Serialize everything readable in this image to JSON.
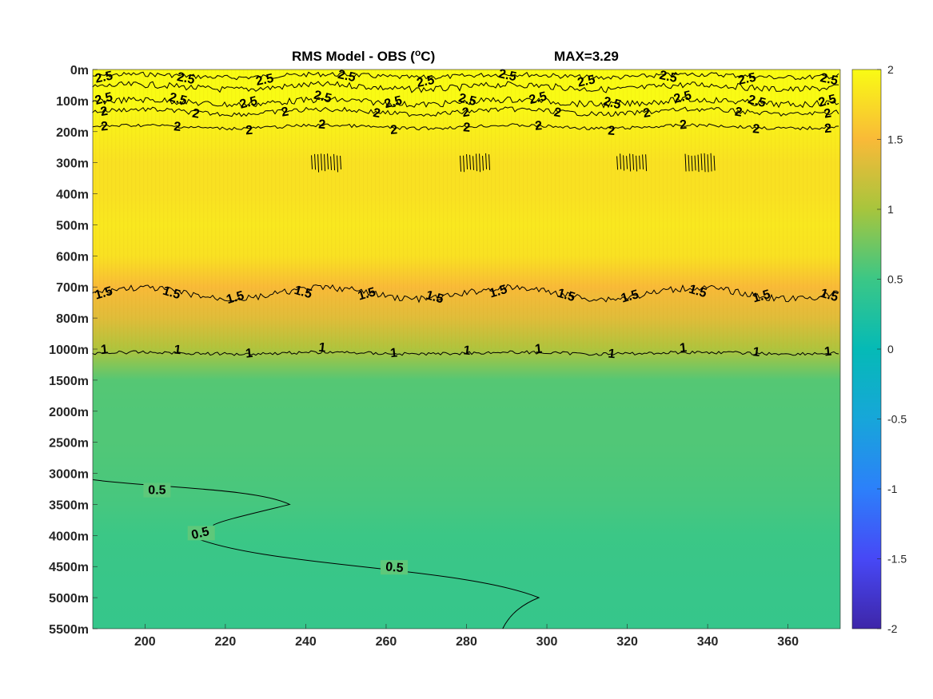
{
  "chart_data": {
    "type": "heatmap",
    "title": "RMS Model - OBS (°C)",
    "title_prefix": "RMS Model - OBS (",
    "title_degree": "o",
    "title_suffix": "C)",
    "max_label": "MAX=3.29",
    "x_ticks": [
      200,
      220,
      240,
      260,
      280,
      300,
      320,
      340,
      360
    ],
    "x_range": [
      187,
      373
    ],
    "y_tick_labels": [
      "0m",
      "100m",
      "200m",
      "300m",
      "400m",
      "500m",
      "600m",
      "700m",
      "800m",
      "1000m",
      "1500m",
      "2000m",
      "2500m",
      "3000m",
      "3500m",
      "4000m",
      "4500m",
      "5000m",
      "5500m"
    ],
    "colorbar": {
      "range": [
        -2,
        2
      ],
      "ticks": [
        2,
        1.5,
        1,
        0.5,
        0,
        -0.5,
        -1,
        -1.5,
        -2
      ],
      "colormap": "parula"
    },
    "depth_profile_rms": [
      {
        "level": "0m",
        "value": 2.6
      },
      {
        "level": "100m",
        "value": 2.4
      },
      {
        "level": "200m",
        "value": 1.9
      },
      {
        "level": "300m",
        "value": 1.8
      },
      {
        "level": "400m",
        "value": 1.8
      },
      {
        "level": "500m",
        "value": 1.85
      },
      {
        "level": "600m",
        "value": 1.8
      },
      {
        "level": "700m",
        "value": 1.5
      },
      {
        "level": "800m",
        "value": 1.35
      },
      {
        "level": "1000m",
        "value": 1.05
      },
      {
        "level": "1500m",
        "value": 0.62
      },
      {
        "level": "2000m",
        "value": 0.6
      },
      {
        "level": "2500m",
        "value": 0.6
      },
      {
        "level": "3000m",
        "value": 0.58
      },
      {
        "level": "3500m",
        "value": 0.55
      },
      {
        "level": "4000m",
        "value": 0.5
      },
      {
        "level": "4500m",
        "value": 0.48
      },
      {
        "level": "5000m",
        "value": 0.46
      },
      {
        "level": "5500m",
        "value": 0.45
      }
    ],
    "contours": [
      {
        "level": "2.5",
        "label": "2.5"
      },
      {
        "level": "2",
        "label": "2"
      },
      {
        "level": "1.5",
        "label": "1.5"
      },
      {
        "level": "1",
        "label": "1"
      },
      {
        "level": "0.5",
        "label": "0.5"
      }
    ],
    "contour_label_2p5": "2.5",
    "contour_label_2": "2",
    "contour_label_1p5": "1.5",
    "contour_label_1": "1",
    "contour_label_0p5": "0.5"
  }
}
